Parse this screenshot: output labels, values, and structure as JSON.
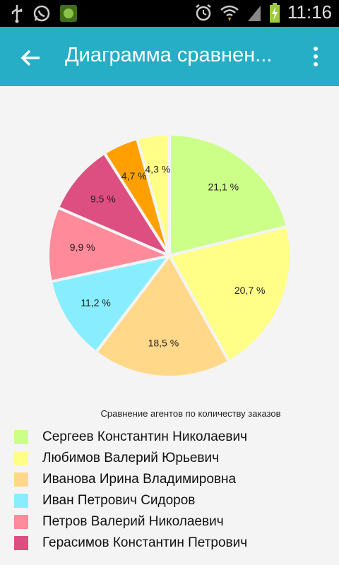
{
  "status_bar": {
    "time": "11:16",
    "icons": [
      "usb-icon",
      "whatsapp-icon",
      "app-shield-icon",
      "alarm-icon",
      "wifi-icon",
      "signal-icon",
      "battery-charging-icon"
    ]
  },
  "app_bar": {
    "title": "Диаграмма сравнен...",
    "back_icon": "arrow-back-icon",
    "menu_icon": "more-vert-icon",
    "color": "#26aec6"
  },
  "chart_data": {
    "type": "pie",
    "title": "Сравнение агентов по количеству заказов",
    "slices": [
      {
        "name": "Сергеев Константин Николаевич",
        "value": 21.1,
        "label": "21,1 %",
        "color": "#ccff88"
      },
      {
        "name": "Любимов Валерий Юрьевич",
        "value": 20.7,
        "label": "20,7 %",
        "color": "#ffff88"
      },
      {
        "name": "Иванова Ирина Владимировна",
        "value": 18.5,
        "label": "18,5 %",
        "color": "#ffd88a"
      },
      {
        "name": "Иван Петрович Сидоров",
        "value": 11.2,
        "label": "11,2 %",
        "color": "#88eeff"
      },
      {
        "name": "Петров Валерий Николаевич",
        "value": 9.9,
        "label": "9,9 %",
        "color": "#ff8a99"
      },
      {
        "name": "Герасимов Константин Петрович",
        "value": 9.5,
        "label": "9,5 %",
        "color": "#dd4f80"
      },
      {
        "name": "",
        "value": 4.7,
        "label": "4,7 %",
        "color": "#ffa000"
      },
      {
        "name": "",
        "value": 4.3,
        "label": "4,3 %",
        "color": "#ffff88"
      }
    ],
    "legend_placement": "bottom"
  }
}
